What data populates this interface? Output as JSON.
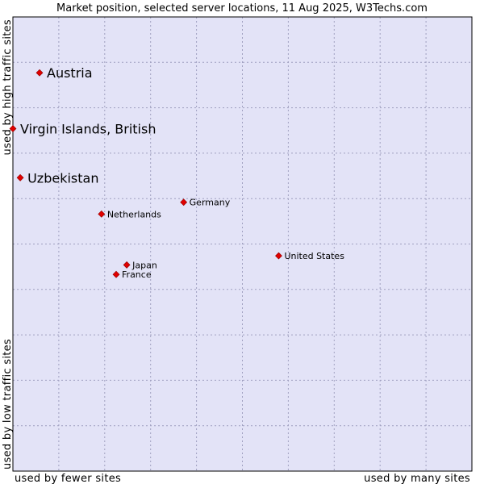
{
  "chart_data": {
    "type": "scatter",
    "title": "Market position, selected server locations, 11 Aug 2025, W3Techs.com",
    "xlabel_left": "used by fewer sites",
    "xlabel_right": "used by many sites",
    "ylabel_bottom": "used by low traffic sites",
    "ylabel_top": "used by high traffic sites",
    "xlim": [
      0,
      100
    ],
    "ylim": [
      0,
      100
    ],
    "grid": true,
    "points": [
      {
        "name": "Austria",
        "x": 5.8,
        "y": 87.7,
        "emphasis": true
      },
      {
        "name": "Virgin Islands, British",
        "x": 0.0,
        "y": 75.4,
        "emphasis": true
      },
      {
        "name": "Uzbekistan",
        "x": 1.6,
        "y": 64.6,
        "emphasis": true
      },
      {
        "name": "Germany",
        "x": 37.2,
        "y": 59.2,
        "emphasis": false
      },
      {
        "name": "Netherlands",
        "x": 19.3,
        "y": 56.6,
        "emphasis": false
      },
      {
        "name": "United States",
        "x": 57.9,
        "y": 47.4,
        "emphasis": false
      },
      {
        "name": "Japan",
        "x": 24.8,
        "y": 45.4,
        "emphasis": false
      },
      {
        "name": "France",
        "x": 22.5,
        "y": 43.3,
        "emphasis": false
      }
    ]
  },
  "colors": {
    "plot_bg": "#e3e3f7",
    "grid": "#a0a0c0",
    "marker": "#e00000",
    "marker_border": "#900000"
  }
}
